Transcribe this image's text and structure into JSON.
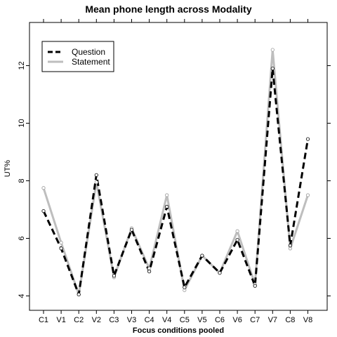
{
  "chart_data": {
    "type": "line",
    "title": "Mean phone length across Modality",
    "xlabel": "Focus conditions pooled",
    "ylabel": "UT%",
    "categories": [
      "C1",
      "V1",
      "C2",
      "V2",
      "C3",
      "V3",
      "C4",
      "V4",
      "C5",
      "V5",
      "C6",
      "V6",
      "C7",
      "V7",
      "C8",
      "V8"
    ],
    "ylim": [
      3.5,
      13.5
    ],
    "yticks": [
      4,
      6,
      8,
      10,
      12
    ],
    "legend_position": "top-left",
    "series": [
      {
        "name": "Question",
        "style": "dashed",
        "color": "#000000",
        "values": [
          6.95,
          5.65,
          4.05,
          8.2,
          4.7,
          6.3,
          4.85,
          7.1,
          4.3,
          5.4,
          4.8,
          5.95,
          4.35,
          11.9,
          5.75,
          9.45
        ]
      },
      {
        "name": "Statement",
        "style": "solid",
        "color": "#bebebe",
        "values": [
          7.75,
          5.85,
          4.05,
          7.95,
          4.65,
          6.35,
          4.95,
          7.5,
          4.2,
          5.4,
          4.8,
          6.25,
          4.4,
          12.55,
          5.65,
          7.5
        ]
      }
    ]
  }
}
